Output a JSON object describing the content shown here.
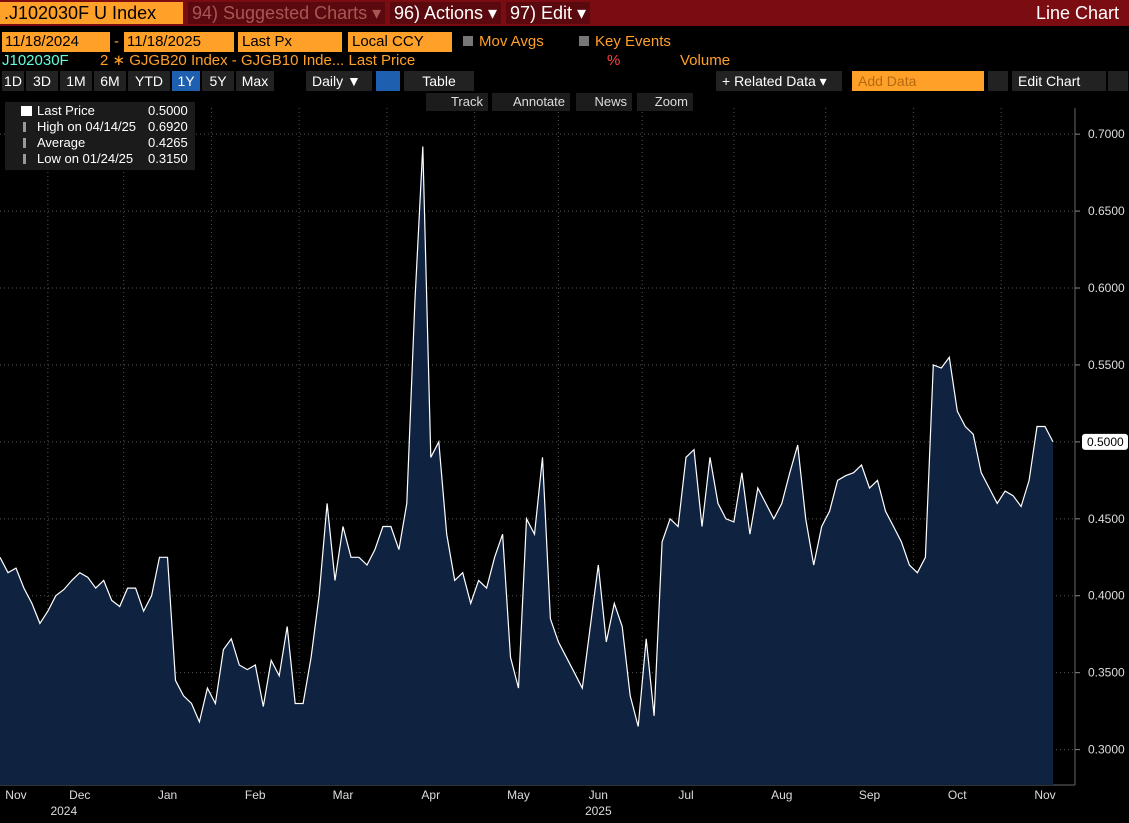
{
  "toolbar": {
    "ticker": ".J102030F U Index",
    "suggested": "94) Suggested Charts ▾",
    "actions": "96) Actions ▾",
    "edit": "97) Edit ▾",
    "chart_kind": "Line Chart",
    "start_date": "11/18/2024",
    "dash": "-",
    "end_date": "11/18/2025",
    "field": "Last Px",
    "currency": "Local CCY",
    "mov_avgs": "Mov Avgs",
    "key_events": "Key Events",
    "security": "J102030F",
    "expression": "2 ∗ GJGB20 Index - GJGB10 Inde... Last Price",
    "percent": "%",
    "volume": "Volume",
    "periods": [
      "1D",
      "3D",
      "1M",
      "6M",
      "YTD",
      "1Y",
      "5Y",
      "Max"
    ],
    "frequency": "Daily ▼",
    "table": "Table",
    "related": "+ Related Data ▾",
    "add_data": "Add Data",
    "edit_chart": "Edit Chart",
    "tools": [
      "Track",
      "Annotate",
      "News",
      "Zoom"
    ]
  },
  "chart_data": {
    "type": "line",
    "color": "#ffffff",
    "fill": "#0f2340",
    "grid": true,
    "legend": [
      {
        "label": "Last Price",
        "value": "0.5000"
      },
      {
        "label": "High on 04/14/25",
        "value": "0.6920"
      },
      {
        "label": "Average",
        "value": "0.4265"
      },
      {
        "label": "Low on 01/24/25",
        "value": "0.3150"
      }
    ],
    "categories": [
      null,
      null,
      "Nov",
      null,
      null,
      null,
      null,
      null,
      null,
      null,
      "Dec",
      null,
      null,
      null,
      null,
      null,
      null,
      null,
      null,
      null,
      null,
      "Jan",
      null,
      null,
      null,
      null,
      null,
      null,
      null,
      null,
      null,
      null,
      "Feb",
      null,
      null,
      null,
      null,
      null,
      null,
      null,
      null,
      null,
      null,
      "Mar",
      null,
      null,
      null,
      null,
      null,
      null,
      null,
      null,
      null,
      null,
      "Apr",
      null,
      null,
      null,
      null,
      null,
      null,
      null,
      null,
      null,
      null,
      "May",
      null,
      null,
      null,
      null,
      null,
      null,
      null,
      null,
      null,
      "Jun",
      null,
      null,
      null,
      null,
      null,
      null,
      null,
      null,
      null,
      null,
      "Jul",
      null,
      null,
      null,
      null,
      null,
      null,
      null,
      null,
      null,
      null,
      null,
      "Aug",
      null,
      null,
      null,
      null,
      null,
      null,
      null,
      null,
      null,
      null,
      "Sep",
      null,
      null,
      null,
      null,
      null,
      null,
      null,
      null,
      null,
      null,
      "Oct",
      null,
      null,
      null,
      null,
      null,
      null,
      null,
      null,
      null,
      null,
      "Nov",
      null
    ],
    "year_labels": [
      null,
      null,
      null,
      null,
      null,
      null,
      null,
      null,
      "2024",
      null,
      null,
      null,
      null,
      null,
      null,
      null,
      null,
      null,
      null,
      null,
      null,
      null,
      null,
      null,
      null,
      null,
      null,
      null,
      null,
      null,
      null,
      null,
      null,
      null,
      null,
      null,
      null,
      null,
      null,
      null,
      null,
      null,
      null,
      null,
      null,
      null,
      null,
      null,
      null,
      null,
      null,
      null,
      null,
      null,
      null,
      null,
      null,
      null,
      null,
      null,
      null,
      null,
      null,
      null,
      null,
      null,
      null,
      null,
      null,
      null,
      null,
      null,
      null,
      null,
      null,
      "2025",
      null,
      null,
      null,
      null,
      null,
      null,
      null,
      null,
      null,
      null,
      null,
      null,
      null,
      null,
      null,
      null,
      null,
      null,
      null,
      null,
      null,
      null,
      null,
      null,
      null,
      null,
      null,
      null,
      null,
      null,
      null,
      null,
      null,
      null,
      null,
      null,
      null,
      null,
      null,
      null,
      null,
      null,
      null,
      null,
      null,
      null,
      null,
      null,
      null,
      null,
      null,
      null,
      null,
      null,
      null,
      null,
      null
    ],
    "values": [
      0.425,
      0.415,
      0.418,
      0.405,
      0.395,
      0.382,
      0.39,
      0.4,
      0.404,
      0.41,
      0.415,
      0.412,
      0.405,
      0.41,
      0.397,
      0.393,
      0.405,
      0.405,
      0.39,
      0.4,
      0.425,
      0.425,
      0.345,
      0.335,
      0.33,
      0.318,
      0.34,
      0.33,
      0.365,
      0.372,
      0.355,
      0.352,
      0.355,
      0.328,
      0.358,
      0.348,
      0.38,
      0.33,
      0.33,
      0.36,
      0.4,
      0.46,
      0.41,
      0.445,
      0.425,
      0.425,
      0.42,
      0.43,
      0.445,
      0.445,
      0.43,
      0.46,
      0.59,
      0.692,
      0.49,
      0.5,
      0.44,
      0.41,
      0.415,
      0.395,
      0.41,
      0.405,
      0.425,
      0.44,
      0.36,
      0.34,
      0.45,
      0.44,
      0.49,
      0.385,
      0.37,
      0.36,
      0.35,
      0.34,
      0.38,
      0.42,
      0.37,
      0.395,
      0.38,
      0.335,
      0.315,
      0.372,
      0.322,
      0.435,
      0.45,
      0.445,
      0.49,
      0.495,
      0.445,
      0.49,
      0.46,
      0.45,
      0.448,
      0.48,
      0.44,
      0.47,
      0.46,
      0.45,
      0.46,
      0.48,
      0.498,
      0.45,
      0.42,
      0.445,
      0.455,
      0.475,
      0.478,
      0.48,
      0.485,
      0.47,
      0.475,
      0.455,
      0.445,
      0.435,
      0.42,
      0.415,
      0.425,
      0.55,
      0.548,
      0.555,
      0.52,
      0.51,
      0.505,
      0.48,
      0.47,
      0.46,
      0.468,
      0.465,
      0.458,
      0.475,
      0.51,
      0.51,
      0.5
    ],
    "ylim": [
      0.277,
      0.717
    ],
    "yticks": [
      {
        "value": 0.3,
        "label": "0.3000"
      },
      {
        "value": 0.35,
        "label": "0.3500"
      },
      {
        "value": 0.4,
        "label": "0.4000"
      },
      {
        "value": 0.45,
        "label": "0.4500"
      },
      {
        "value": 0.5,
        "label": "0.5000"
      },
      {
        "value": 0.55,
        "label": "0.5500"
      },
      {
        "value": 0.6,
        "label": "0.6000"
      },
      {
        "value": 0.65,
        "label": "0.6500"
      },
      {
        "value": 0.7,
        "label": "0.7000"
      }
    ]
  }
}
